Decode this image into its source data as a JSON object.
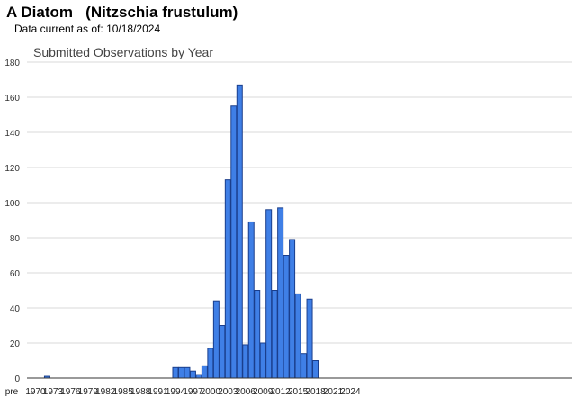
{
  "header": {
    "common_name": "A Diatom",
    "scientific_name": "(Nitzschia frustulum)",
    "data_current_label": "Data current as of:",
    "data_current_date": "10/18/2024"
  },
  "chart_data": {
    "type": "bar",
    "title": "Submitted Observations by Year",
    "xlabel": "",
    "ylabel": "",
    "ylim": [
      0,
      180
    ],
    "yticks": [
      0,
      20,
      40,
      60,
      80,
      100,
      120,
      140,
      160,
      180
    ],
    "grid": true,
    "legend": "none",
    "bar_color": "#3f7fe6",
    "bar_edge_color": "#1a3e8c",
    "categories": [
      "pre 1970",
      "1970",
      "1971",
      "1972",
      "1973",
      "1974",
      "1975",
      "1976",
      "1977",
      "1978",
      "1979",
      "1980",
      "1981",
      "1982",
      "1983",
      "1984",
      "1985",
      "1986",
      "1987",
      "1988",
      "1989",
      "1990",
      "1991",
      "1992",
      "1993",
      "1994",
      "1995",
      "1996",
      "1997",
      "1998",
      "1999",
      "2000",
      "2001",
      "2002",
      "2003",
      "2004",
      "2005",
      "2006",
      "2007",
      "2008",
      "2009",
      "2010",
      "2011",
      "2012",
      "2013",
      "2014",
      "2015",
      "2016",
      "2017",
      "2018",
      "2019",
      "2020",
      "2021",
      "2022",
      "2023",
      "2024"
    ],
    "values": [
      0,
      0,
      0,
      1,
      0,
      0,
      0,
      0,
      0,
      0,
      0,
      0,
      0,
      0,
      0,
      0,
      0,
      0,
      0,
      0,
      0,
      0,
      0,
      0,
      0,
      6,
      6,
      6,
      4,
      2,
      7,
      17,
      44,
      30,
      113,
      155,
      167,
      19,
      89,
      50,
      20,
      96,
      50,
      97,
      70,
      79,
      48,
      14,
      45,
      10,
      0,
      0,
      0,
      0,
      0,
      0
    ],
    "tick_labels": [
      "pre",
      "1970",
      "1973",
      "1976",
      "1979",
      "1982",
      "1985",
      "1988",
      "1991",
      "1994",
      "1997",
      "2000",
      "2003",
      "2006",
      "2009",
      "2012",
      "2015",
      "2018",
      "2021",
      "2024"
    ]
  }
}
